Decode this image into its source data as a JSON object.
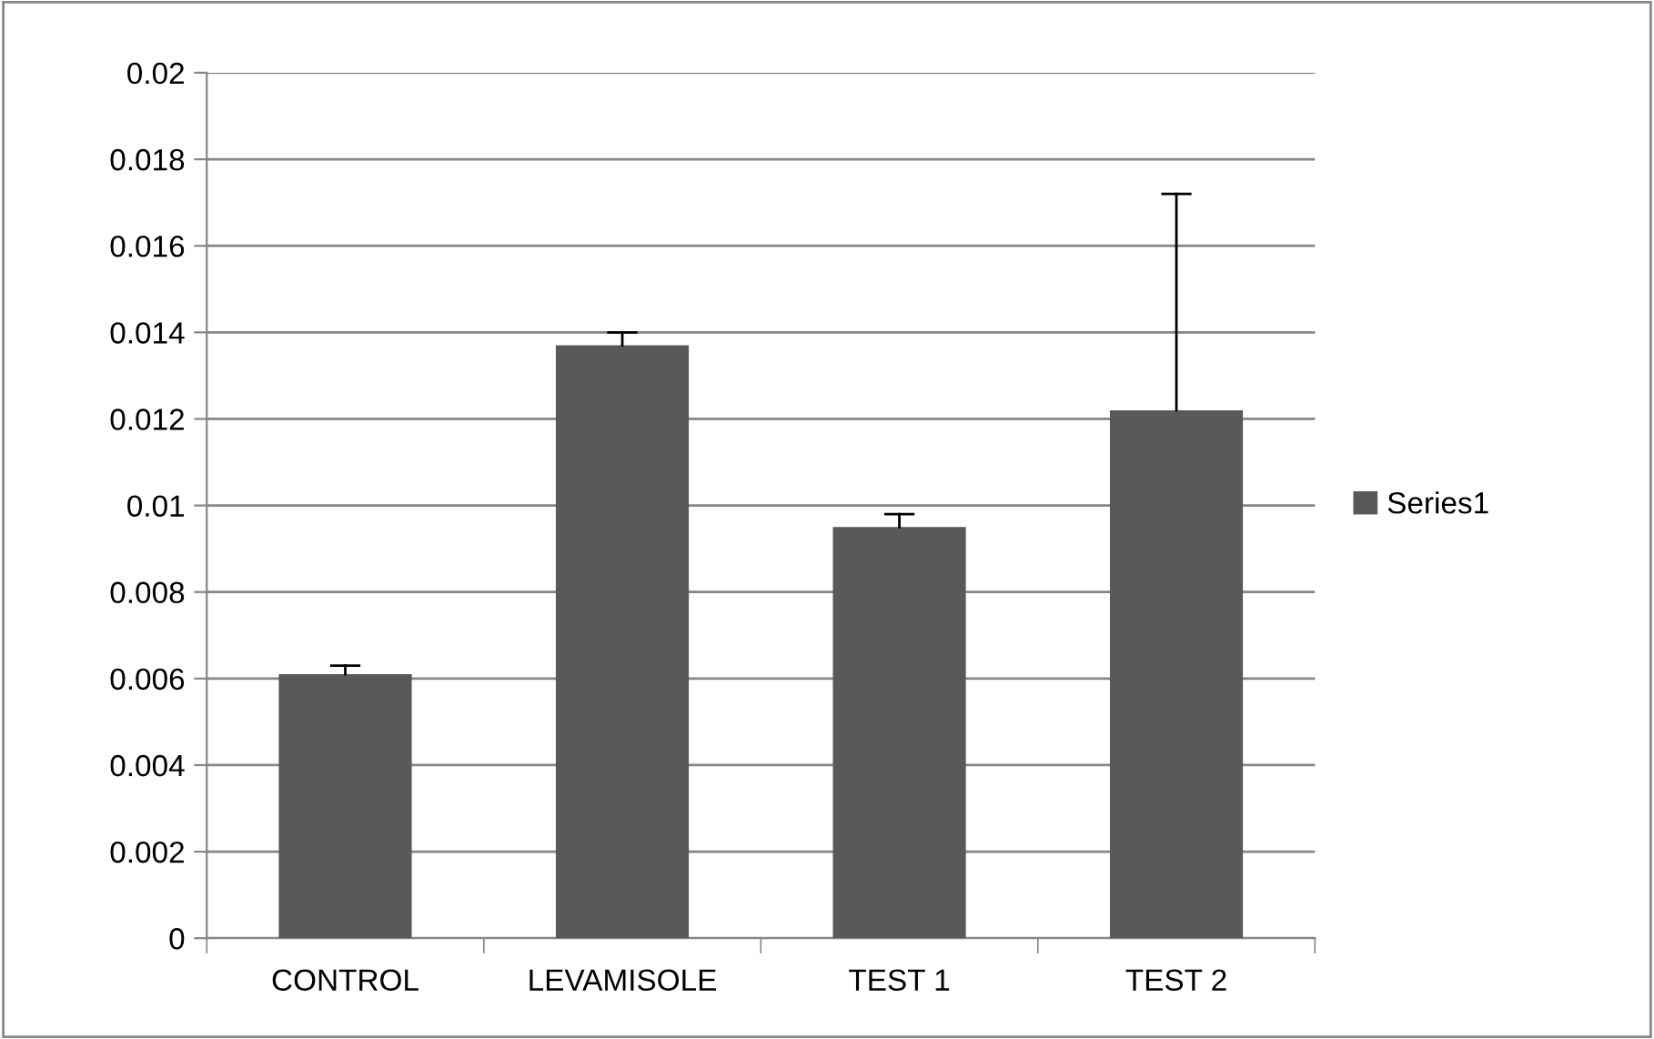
{
  "chart_data": {
    "type": "bar",
    "categories": [
      "CONTROL",
      "LEVAMISOLE",
      "TEST 1",
      "TEST 2"
    ],
    "series": [
      {
        "name": "Series1",
        "color": "#595959",
        "values": [
          0.0061,
          0.0137,
          0.0095,
          0.0122
        ],
        "errors": [
          [
            0.0061,
            0.0063
          ],
          [
            0.0137,
            0.014
          ],
          [
            0.0095,
            0.0098
          ],
          [
            0.0122,
            0.0172
          ]
        ]
      }
    ],
    "ylim": [
      0,
      0.02
    ],
    "yticks": [
      0,
      0.002,
      0.004,
      0.006,
      0.008,
      0.01,
      0.012,
      0.014,
      0.016,
      0.018,
      0.02
    ],
    "grid": "y",
    "legend": "right"
  }
}
